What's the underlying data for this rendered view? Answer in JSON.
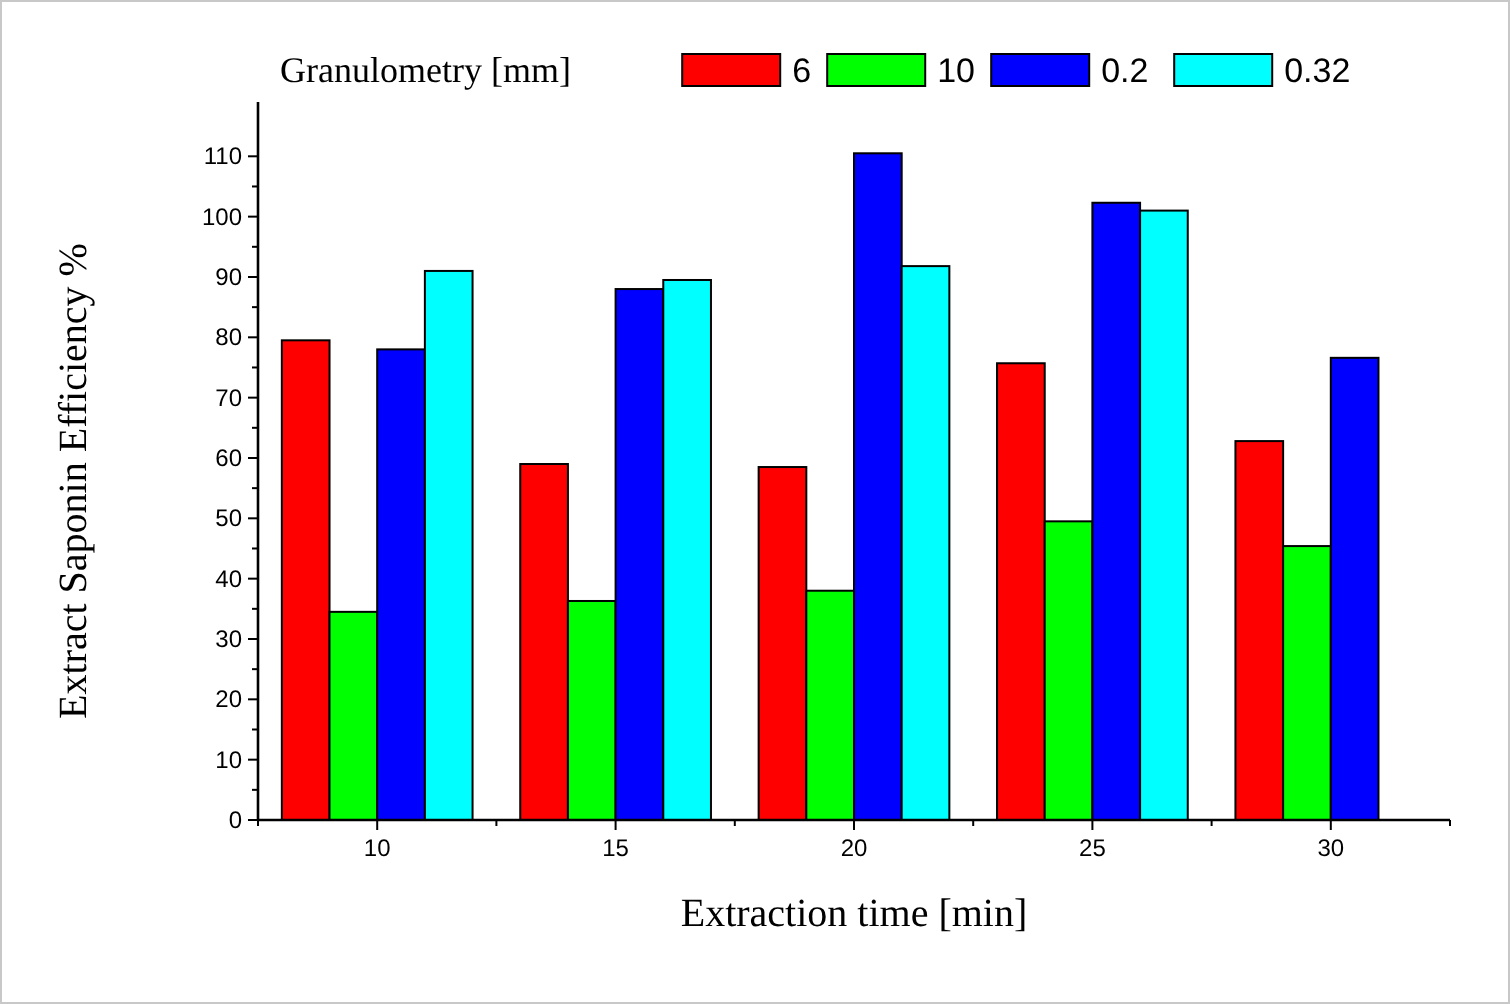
{
  "chart_data": {
    "type": "bar",
    "xlabel": "Extraction time [min]",
    "ylabel": "Extract Saponin Efficiency %",
    "legend_title": "Granulometry [mm]",
    "legend": "top",
    "categories": [
      "10",
      "15",
      "20",
      "25",
      "30"
    ],
    "series": [
      {
        "name": "6",
        "color": "#ff0000",
        "values": [
          79.5,
          59,
          58.5,
          75.7,
          62.8
        ]
      },
      {
        "name": "10",
        "color": "#00ff00",
        "values": [
          34.5,
          36.3,
          38,
          49.5,
          45.4
        ]
      },
      {
        "name": "0.2",
        "color": "#0000ff",
        "values": [
          78,
          88,
          110.5,
          102.3,
          76.6
        ]
      },
      {
        "name": "0.32",
        "color": "#00ffff",
        "values": [
          91,
          89.5,
          91.8,
          101,
          null
        ]
      }
    ],
    "ylim": [
      0,
      119
    ],
    "yticks": [
      0,
      10,
      20,
      30,
      40,
      50,
      60,
      70,
      80,
      90,
      100,
      110
    ]
  }
}
